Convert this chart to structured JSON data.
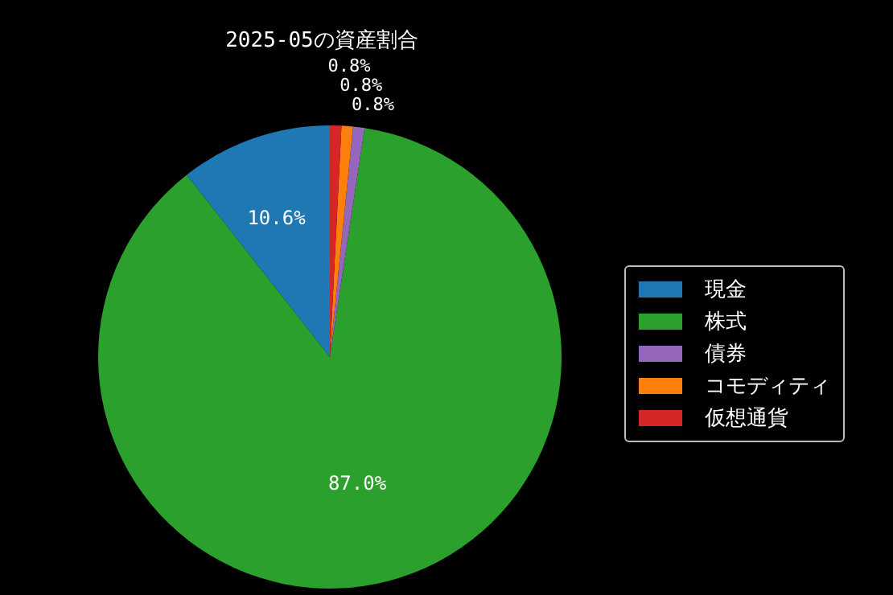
{
  "chart_data": {
    "type": "pie",
    "title": "2025-05の資産割合",
    "categories": [
      "現金",
      "株式",
      "債券",
      "コモディティ",
      "仮想通貨"
    ],
    "values": [
      10.6,
      87.0,
      0.8,
      0.8,
      0.8
    ],
    "colors": [
      "#1f77b4",
      "#2ca02c",
      "#9467bd",
      "#ff7f0e",
      "#d62728"
    ],
    "value_labels": [
      "10.6%",
      "87.0%",
      "0.8%",
      "0.8%",
      "0.8%"
    ],
    "legend": "right"
  }
}
